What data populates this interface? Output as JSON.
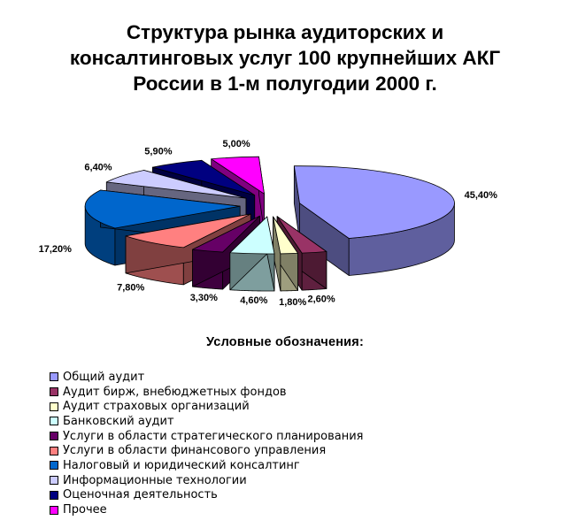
{
  "chart_data": {
    "type": "pie",
    "title": "Структура рынка аудиторских и\nконсалтинговых услуг 100 крупнейших АКГ\nРоссии в 1-м полугодии 2000 г.",
    "legend_title": "Условные  обозначения:",
    "legend_position": "bottom-left",
    "style": "3d-exploded",
    "slices": [
      {
        "name": "Общий аудит",
        "value": 45.4,
        "label": "45,40%",
        "color": "#9999FF"
      },
      {
        "name": "Аудит бирж, внебюджетных фондов",
        "value": 2.6,
        "label": "2,60%",
        "color": "#993366"
      },
      {
        "name": "Аудит страховых организаций",
        "value": 1.8,
        "label": "1,80%",
        "color": "#FFFFCC"
      },
      {
        "name": "Банковский аудит",
        "value": 4.6,
        "label": "4,60%",
        "color": "#CCFFFF"
      },
      {
        "name": "Услуги в области стратегического планирования",
        "value": 3.3,
        "label": "3,30%",
        "color": "#660066"
      },
      {
        "name": "Услуги в области финансового управления",
        "value": 7.8,
        "label": "7,80%",
        "color": "#FF8080"
      },
      {
        "name": "Налоговый и юридический консалтинг",
        "value": 17.2,
        "label": "17,20%",
        "color": "#0066CC"
      },
      {
        "name": "Информационные технологии",
        "value": 6.4,
        "label": "6,40%",
        "color": "#CCCCFF"
      },
      {
        "name": "Оценочная деятельность",
        "value": 5.9,
        "label": "5,90%",
        "color": "#000080"
      },
      {
        "name": "Прочее",
        "value": 5.0,
        "label": "5,00%",
        "color": "#FF00FF"
      }
    ]
  }
}
